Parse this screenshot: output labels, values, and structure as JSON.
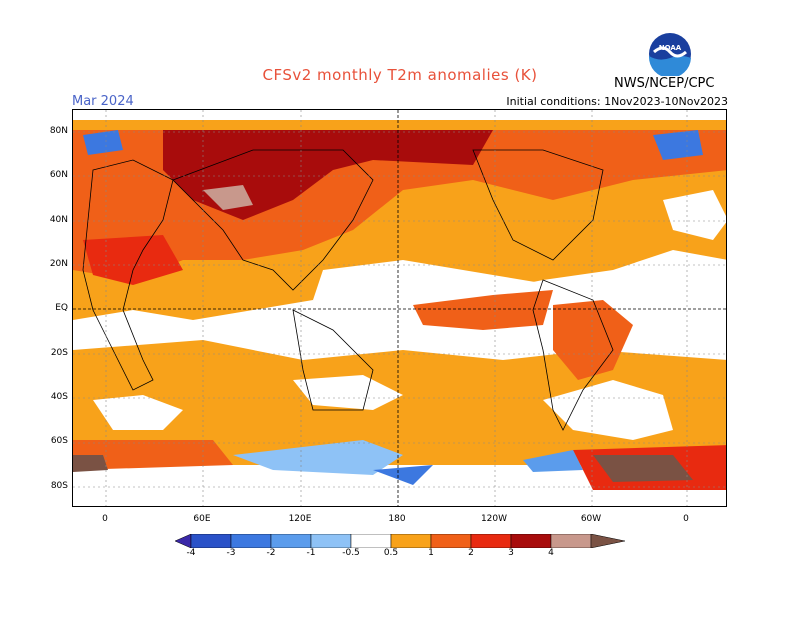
{
  "title": "CFSv2 monthly T2m anomalies (K)",
  "valid_month": "Mar 2024",
  "initial_conditions": "Initial conditions: 1Nov2023-10Nov2023",
  "agency": "NWS/NCEP/CPC",
  "logo_text": "NOAA",
  "lat_labels": [
    "80N",
    "60N",
    "40N",
    "20N",
    "EQ",
    "20S",
    "40S",
    "60S",
    "80S"
  ],
  "lon_labels": [
    "0",
    "60E",
    "120E",
    "180",
    "120W",
    "60W",
    "0"
  ],
  "colorbar": {
    "labels": [
      "-4",
      "-3",
      "-2",
      "-1",
      "-0.5",
      "0.5",
      "1",
      "2",
      "3",
      "4"
    ],
    "colors": [
      "#3a28a8",
      "#2a52c8",
      "#3c78e0",
      "#5b9cec",
      "#8ec2f6",
      "#ffffff",
      "#f8a21a",
      "#f06018",
      "#e82a10",
      "#a80c0c",
      "#c8988c",
      "#7a5244"
    ]
  }
}
